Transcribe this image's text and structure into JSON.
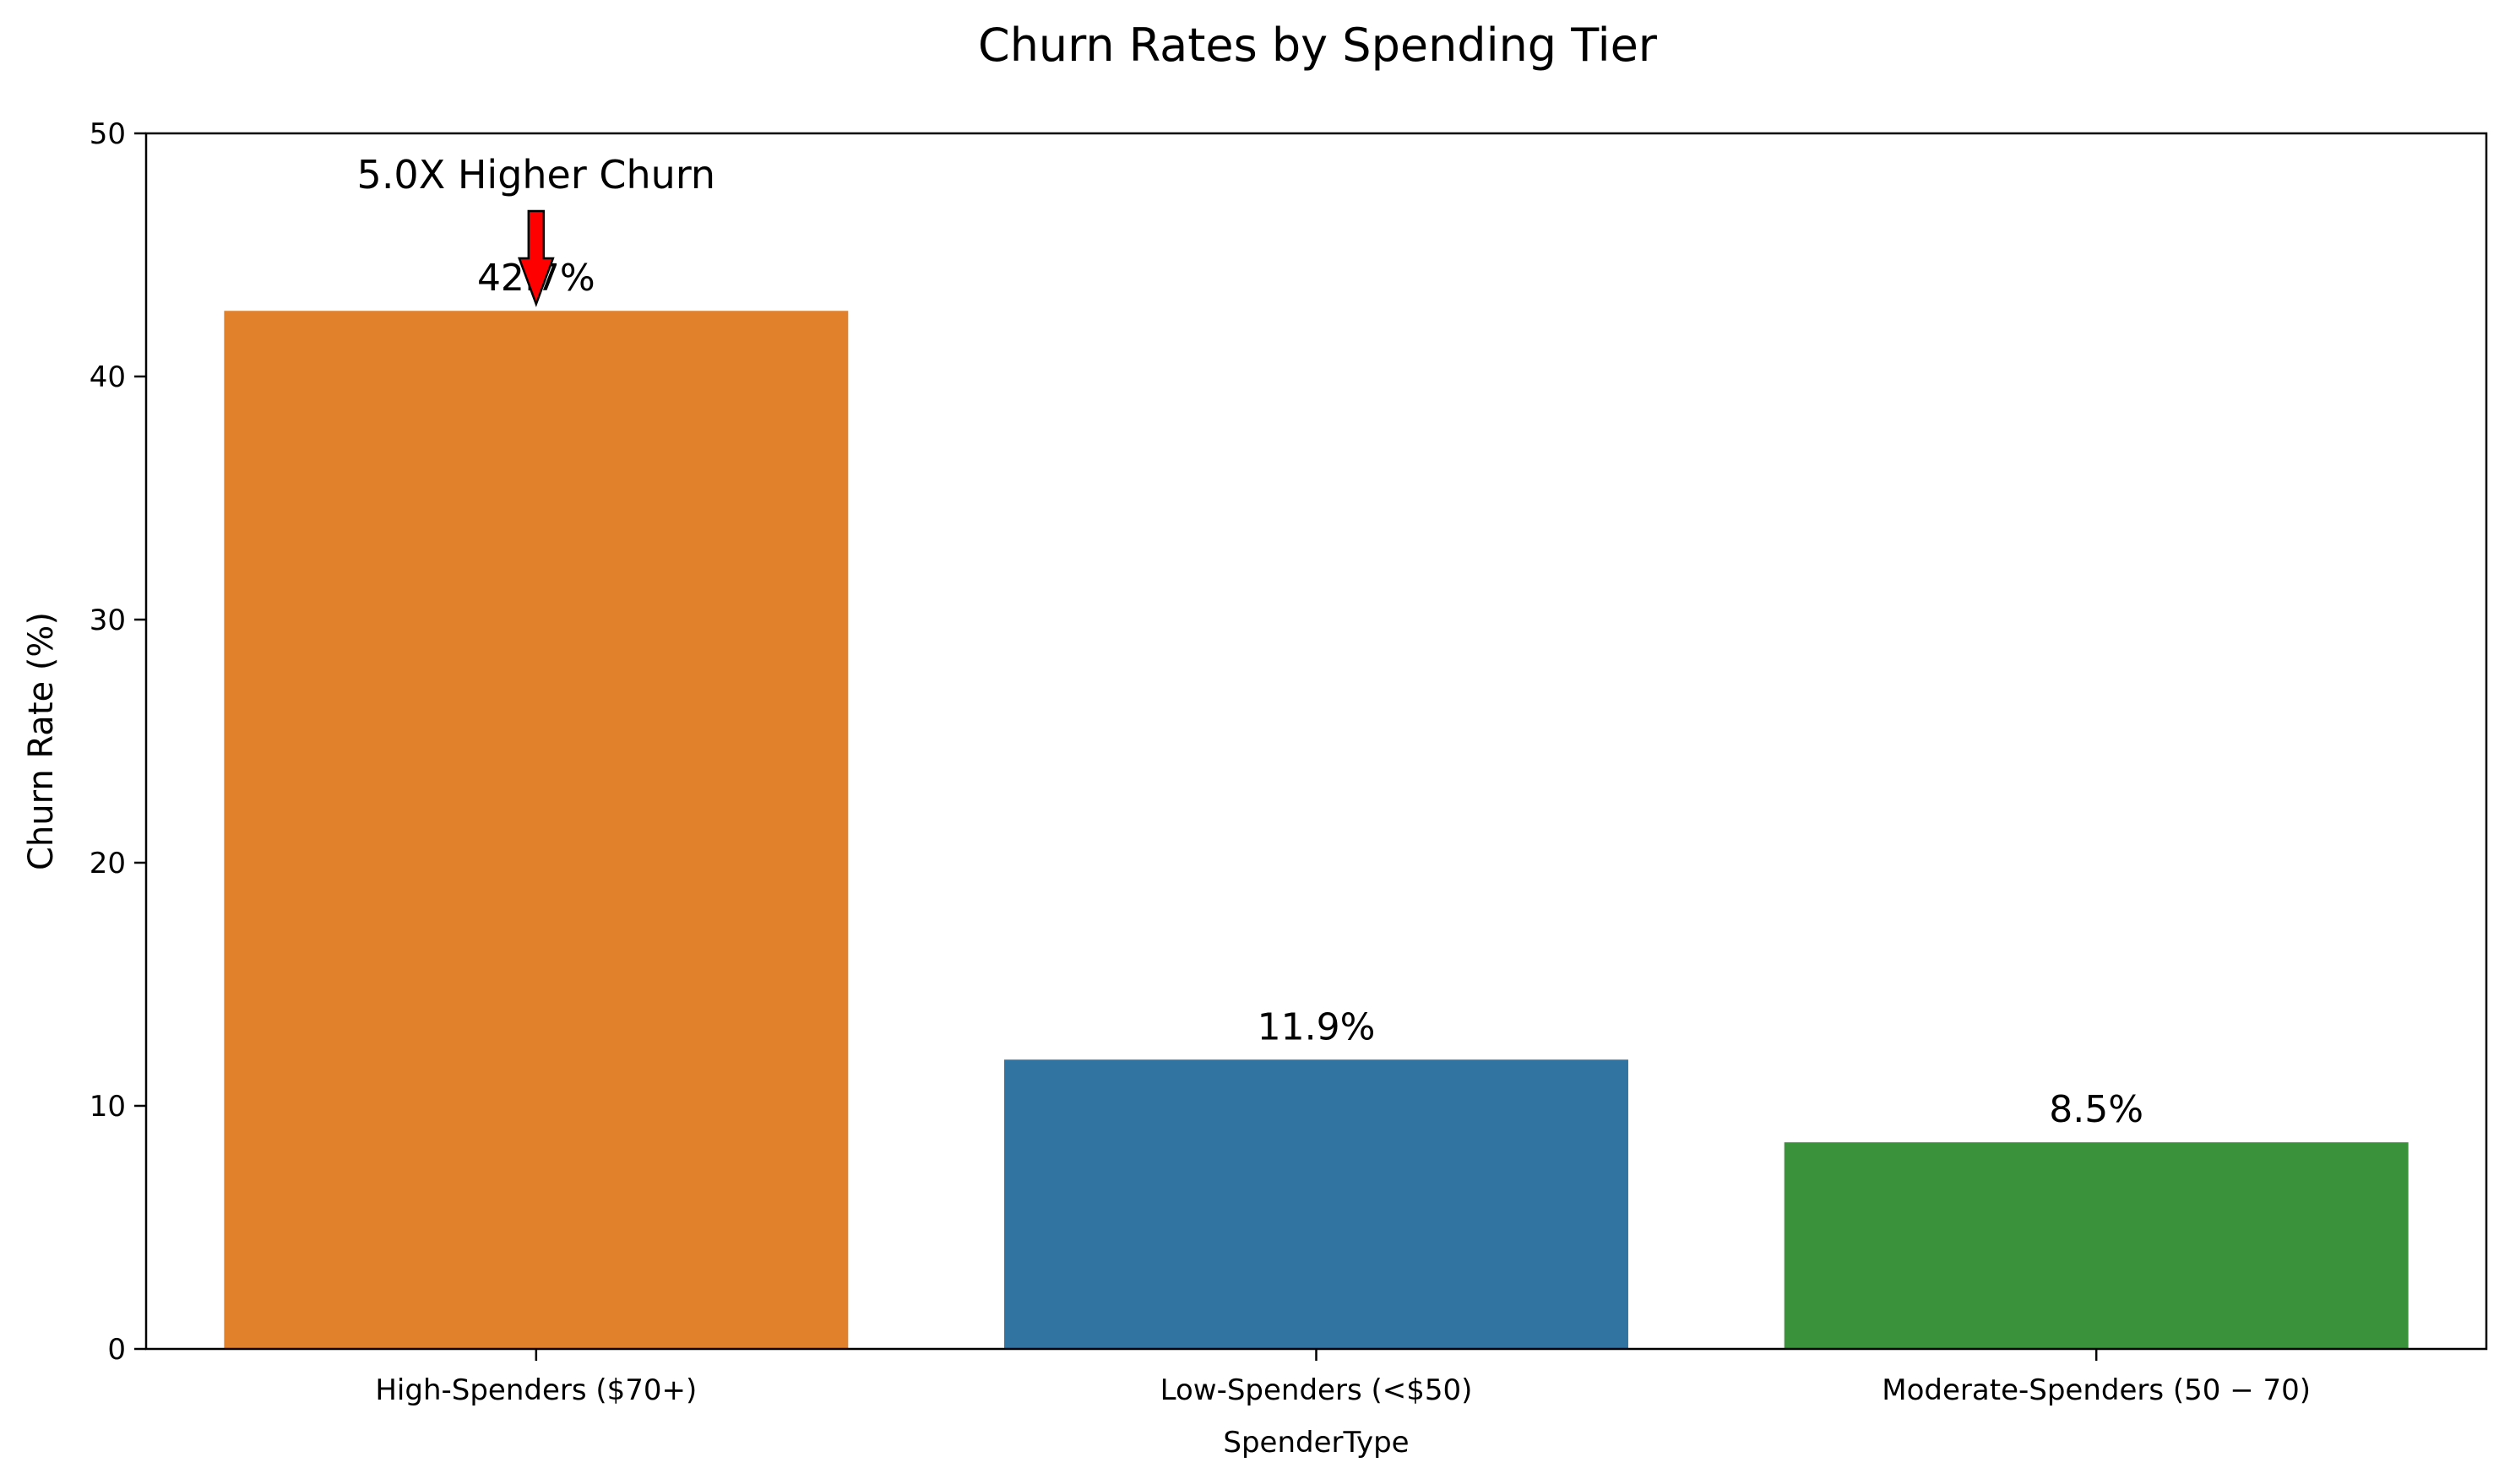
{
  "chart_data": {
    "type": "bar",
    "title": "Churn Rates by Spending Tier",
    "xlabel": "SpenderType",
    "ylabel": "Churn Rate (%)",
    "categories": [
      "High-Spenders ($70+)",
      "Low-Spenders (<$50)",
      "Moderate-Spenders (50 − 70)"
    ],
    "values": [
      42.7,
      11.9,
      8.5
    ],
    "data_labels": [
      "42.7%",
      "11.9%",
      "8.5%"
    ],
    "colors": [
      "#e1812c",
      "#3274a1",
      "#3a923a"
    ],
    "ylim": [
      0,
      50
    ],
    "yticks": [
      0,
      10,
      20,
      30,
      40,
      50
    ],
    "ytick_labels": [
      "0",
      "10",
      "20",
      "30",
      "40",
      "50"
    ],
    "grid": false,
    "annotation": {
      "text": "5.0X Higher Churn",
      "target_category": "High-Spenders ($70+)",
      "target_value": 42.7,
      "arrow_color": "#ff0000"
    }
  }
}
